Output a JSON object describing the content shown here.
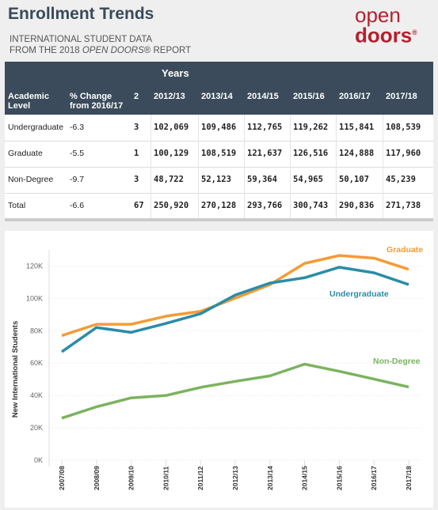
{
  "header": {
    "title": "Enrollment Trends",
    "subtitle_line1": "INTERNATIONAL STUDENT DATA",
    "subtitle_line2": [
      "FROM THE 2018 ",
      "OPEN DOORS",
      "® REPORT"
    ],
    "logo": [
      "open",
      "doors",
      "®"
    ]
  },
  "table": {
    "spanner": "Years",
    "columns": [
      "Academic Level",
      "% Change from 2016/17",
      "2",
      "2012/13",
      "2013/14",
      "2014/15",
      "2015/16",
      "2016/17",
      "2017/18"
    ],
    "rows": [
      [
        "Undergraduate",
        "-6.3",
        "3",
        "102,069",
        "109,486",
        "112,765",
        "119,262",
        "115,841",
        "108,539"
      ],
      [
        "Graduate",
        "-5.5",
        "1",
        "100,129",
        "108,519",
        "121,637",
        "126,516",
        "124,888",
        "117,960"
      ],
      [
        "Non-Degree",
        "-9.7",
        "3",
        "48,722",
        "52,123",
        "59,364",
        "54,965",
        "50,107",
        "45,239"
      ],
      [
        "Total",
        "-6.6",
        "67",
        "250,920",
        "270,128",
        "293,766",
        "300,743",
        "290,836",
        "271,738"
      ]
    ]
  },
  "chart_data": {
    "type": "line",
    "y_label": "New International Students",
    "categories": [
      "2007/08",
      "2008/09",
      "2009/10",
      "2010/11",
      "2011/12",
      "2012/13",
      "2013/14",
      "2014/15",
      "2015/16",
      "2016/17",
      "2017/18"
    ],
    "series": [
      {
        "name": "Graduate",
        "color": "#f39c35",
        "values": [
          77000,
          84000,
          84000,
          89000,
          92000,
          100129,
          108519,
          121637,
          126516,
          124888,
          117960
        ]
      },
      {
        "name": "Undergraduate",
        "color": "#2b8ca8",
        "values": [
          67000,
          82000,
          79000,
          84500,
          90500,
          102069,
          109486,
          112765,
          119262,
          115841,
          108539
        ]
      },
      {
        "name": "Non-Degree",
        "color": "#7bb35f",
        "values": [
          26000,
          33000,
          38500,
          40000,
          45000,
          48722,
          52123,
          59364,
          54965,
          50107,
          45239
        ]
      }
    ],
    "ylim": [
      0,
      130000
    ],
    "yticks": [
      {
        "value": 0,
        "label": "0K"
      },
      {
        "value": 20000,
        "label": "20K"
      },
      {
        "value": 40000,
        "label": "40K"
      },
      {
        "value": 60000,
        "label": "60K"
      },
      {
        "value": 80000,
        "label": "80K"
      },
      {
        "value": 100000,
        "label": "100K"
      },
      {
        "value": 120000,
        "label": "120K"
      }
    ],
    "grid": true
  }
}
